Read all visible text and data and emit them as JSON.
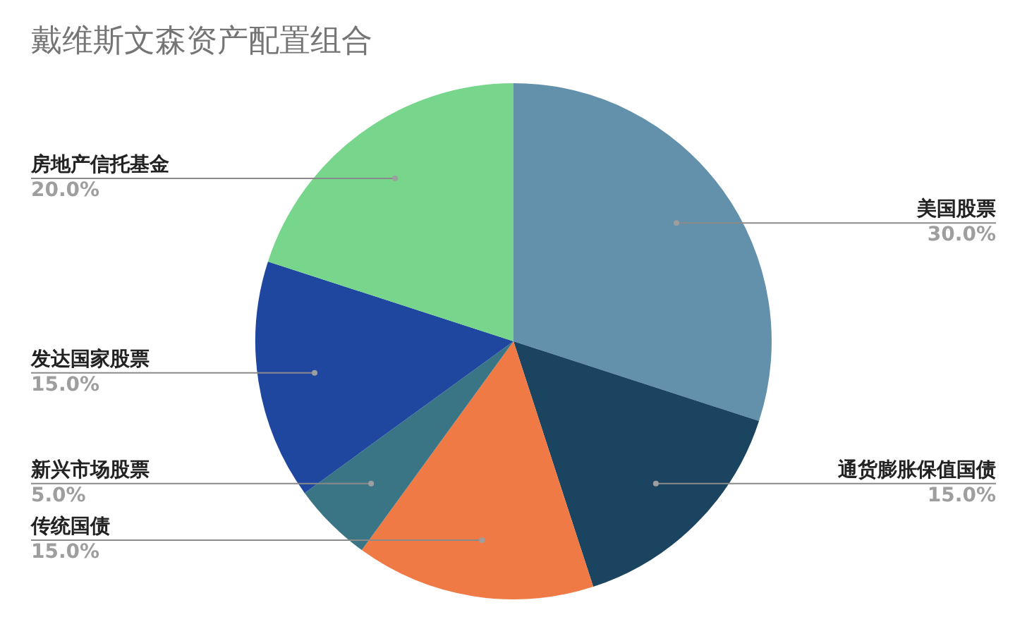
{
  "chart_data": {
    "type": "pie",
    "title": "戴维斯文森资产配置组合",
    "categories": [
      "美国股票",
      "通货膨胀保值国债",
      "传统国债",
      "新兴市场股票",
      "发达国家股票",
      "房地产信托基金"
    ],
    "values": [
      30,
      15,
      15,
      5,
      15,
      20
    ],
    "value_labels": [
      "30.0%",
      "15.0%",
      "15.0%",
      "5.0%",
      "15.0%",
      "20.0%"
    ],
    "colors": [
      "#6391ac",
      "#1b4461",
      "#ef7a45",
      "#3a7585",
      "#1f47a0",
      "#77d68c"
    ],
    "legend": false
  }
}
